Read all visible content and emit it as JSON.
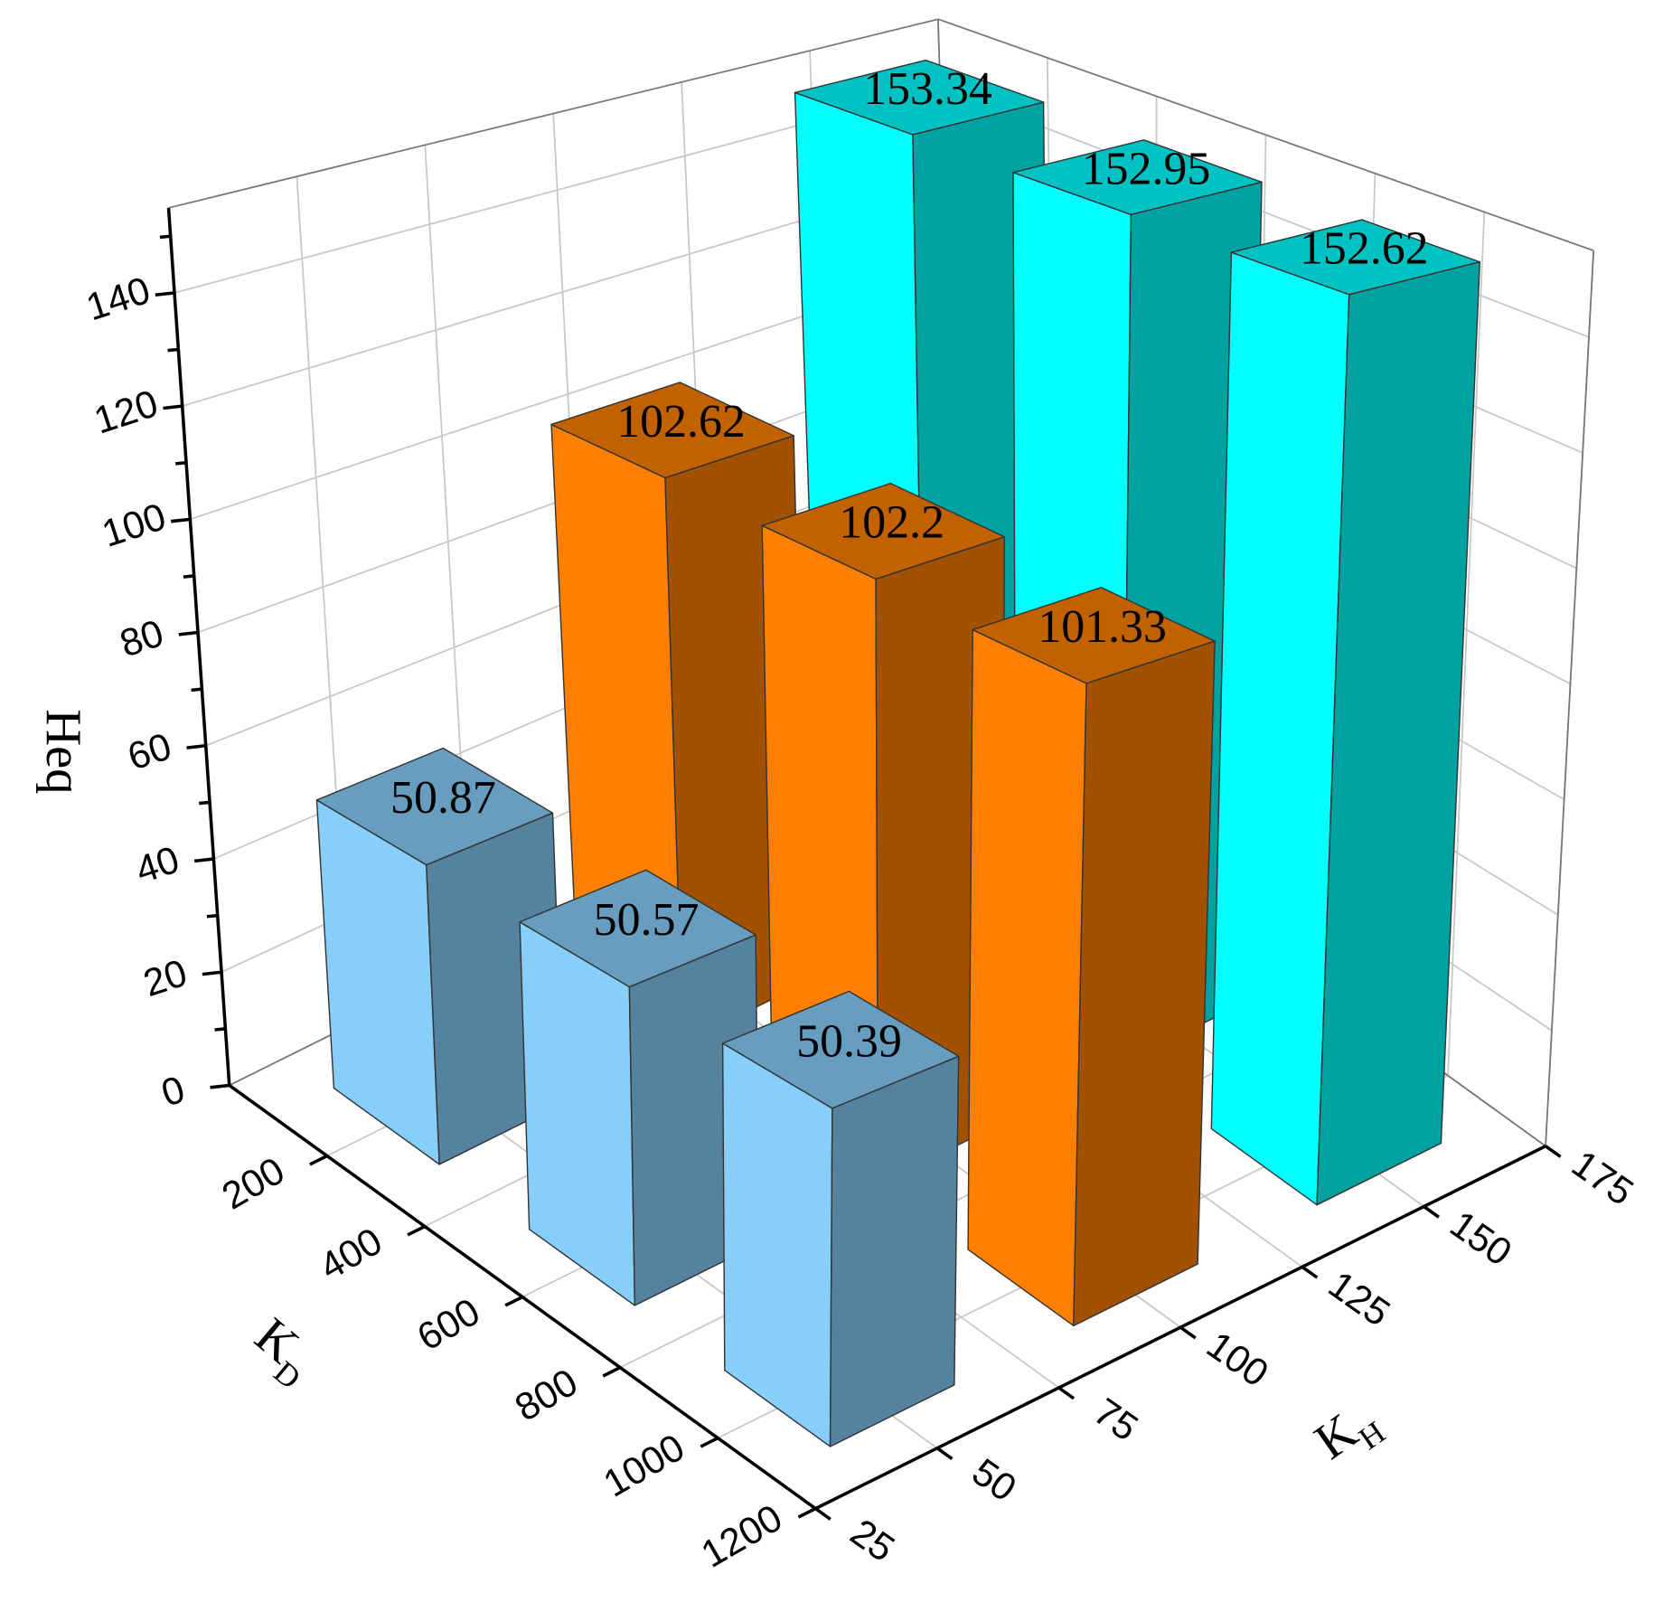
{
  "chart_data": {
    "type": "bar3d",
    "xlabel": "K",
    "xlabel_sub": "D",
    "ylabel": "K",
    "ylabel_sub": "H",
    "zlabel": "Heq",
    "x": [
      200,
      600,
      1000
    ],
    "series": [
      {
        "y": 50,
        "color": "#87cefa",
        "values": [
          50.87,
          50.57,
          50.39
        ]
      },
      {
        "y": 100,
        "color": "#ff8000",
        "values": [
          102.62,
          102.2,
          101.33
        ]
      },
      {
        "y": 150,
        "color": "#00ffff",
        "values": [
          153.34,
          152.95,
          152.62
        ]
      }
    ],
    "xlim": [
      0,
      1200
    ],
    "xticks": [
      200,
      400,
      600,
      800,
      1000,
      1200
    ],
    "ylim": [
      25,
      175
    ],
    "yticks": [
      25,
      50,
      75,
      100,
      125,
      150,
      175
    ],
    "zlim": [
      0,
      155
    ],
    "zticks": [
      0,
      20,
      40,
      60,
      80,
      100,
      120,
      140
    ],
    "zminorticks": [
      10,
      30,
      50,
      70,
      90,
      110,
      130,
      150
    ],
    "grid": true
  }
}
